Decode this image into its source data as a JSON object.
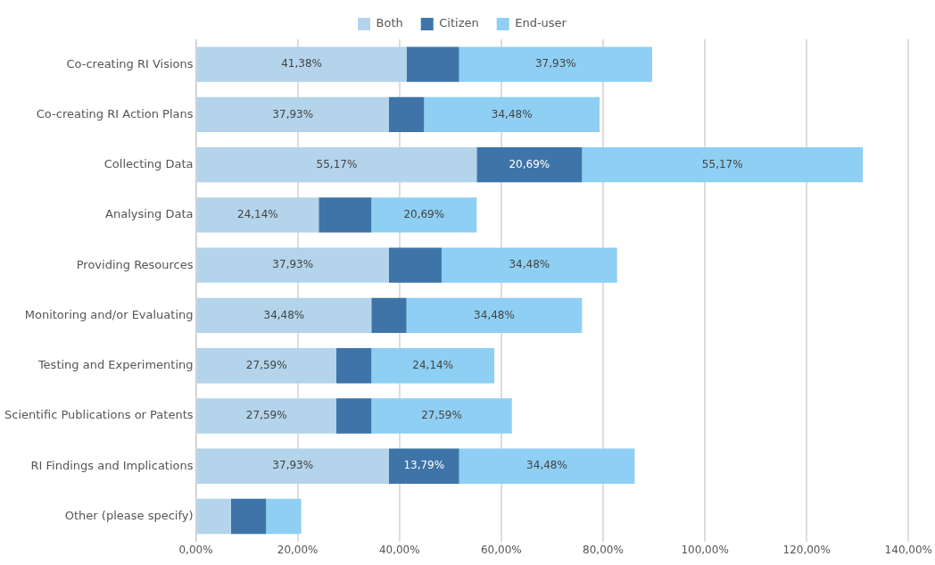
{
  "chart_data": {
    "type": "bar",
    "orientation": "horizontal",
    "stacked": true,
    "categories": [
      "Co-creating RI Visions",
      "Co-creating RI Action Plans",
      "Collecting Data",
      "Analysing Data",
      "Providing Resources",
      "Monitoring and/or Evaluating",
      "Testing and Experimenting",
      "Scientific Publications or Patents",
      "RI Findings and Implications",
      "Other (please specify)"
    ],
    "series": [
      {
        "name": "Both",
        "color": "#b3d4ea",
        "values": [
          41.38,
          37.93,
          55.17,
          24.14,
          37.93,
          34.48,
          27.59,
          27.59,
          37.93,
          6.9
        ],
        "value_labels": [
          "41,38%",
          "37,93%",
          "55,17%",
          "24,14%",
          "37,93%",
          "34,48%",
          "27,59%",
          "27,59%",
          "37,93%",
          null
        ]
      },
      {
        "name": "Citizen",
        "color": "#3f74a8",
        "values": [
          10.34,
          6.9,
          20.69,
          10.34,
          10.34,
          6.9,
          6.9,
          6.9,
          13.79,
          6.9
        ],
        "value_labels": [
          null,
          null,
          "20,69%",
          null,
          null,
          null,
          null,
          null,
          "13,79%",
          null
        ]
      },
      {
        "name": "End-user",
        "color": "#8ecff3",
        "values": [
          37.93,
          34.48,
          55.17,
          20.69,
          34.48,
          34.48,
          24.14,
          27.59,
          34.48,
          6.9
        ],
        "value_labels": [
          "37,93%",
          "34,48%",
          "55,17%",
          "20,69%",
          "34,48%",
          "34,48%",
          "24,14%",
          "27,59%",
          "34,48%",
          null
        ]
      }
    ],
    "xlim": [
      0,
      140
    ],
    "xticks": [
      {
        "value": 0,
        "label": "0,00%"
      },
      {
        "value": 20,
        "label": "20,00%"
      },
      {
        "value": 40,
        "label": "40,00%"
      },
      {
        "value": 60,
        "label": "60,00%"
      },
      {
        "value": 80,
        "label": "80,00%"
      },
      {
        "value": 100,
        "label": "100,00%"
      },
      {
        "value": 120,
        "label": "120,00%"
      },
      {
        "value": 140,
        "label": "140,00%"
      }
    ],
    "grid": "x",
    "legend": "top left"
  }
}
